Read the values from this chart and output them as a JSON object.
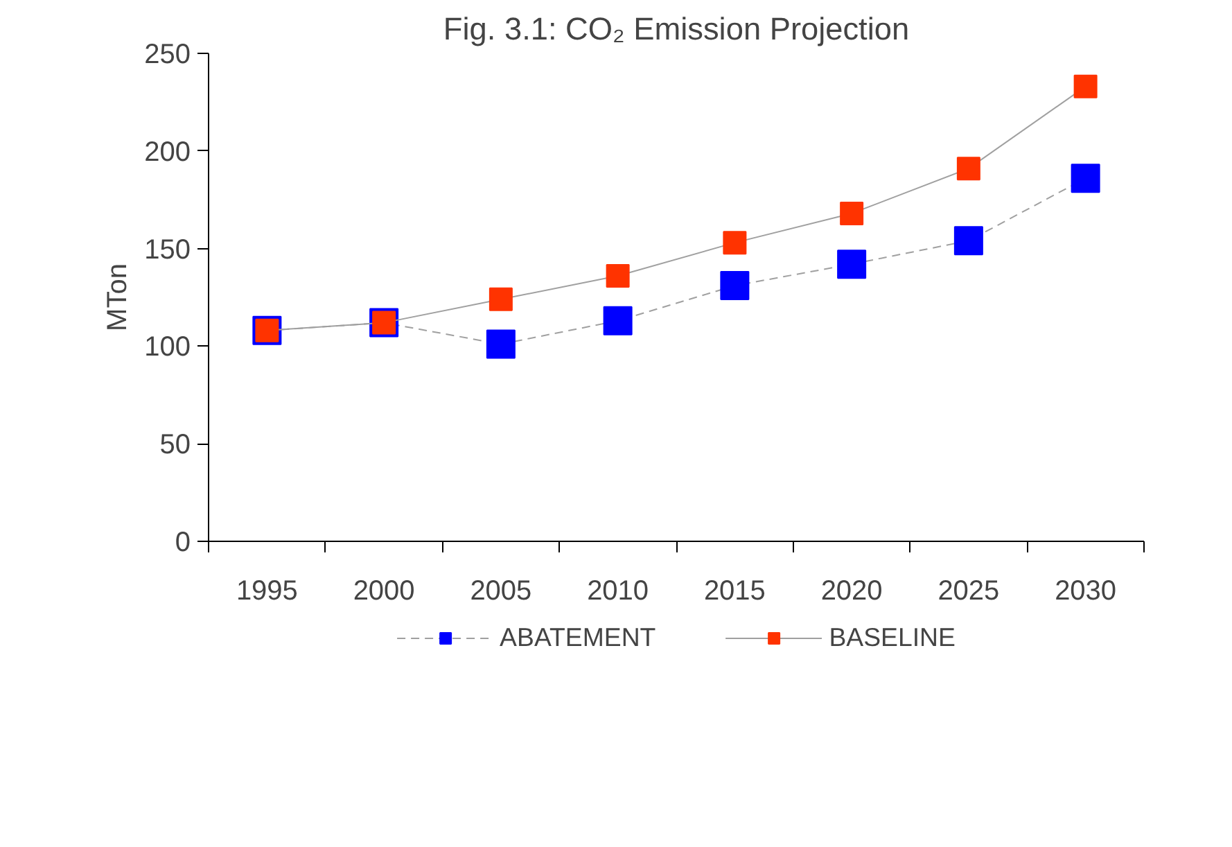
{
  "chart_data": {
    "type": "line",
    "title": "Fig. 3.1: CO₂ Emission Projection",
    "ylabel": "MTon",
    "categories": [
      "1995",
      "2000",
      "2005",
      "2010",
      "2015",
      "2020",
      "2025",
      "2030"
    ],
    "series": [
      {
        "name": "ABATEMENT",
        "color": "#0000ff",
        "line_style": "dashed",
        "values": [
          108,
          112,
          101,
          113,
          131,
          142,
          154,
          186
        ]
      },
      {
        "name": "BASELINE",
        "color": "#ff3300",
        "line_style": "solid",
        "values": [
          108,
          112,
          124,
          136,
          153,
          168,
          191,
          233
        ]
      }
    ],
    "ylim": [
      0,
      250
    ],
    "yticks": [
      0,
      50,
      100,
      150,
      200,
      250
    ],
    "marker": "square",
    "legend": "bottom",
    "grid": false
  }
}
